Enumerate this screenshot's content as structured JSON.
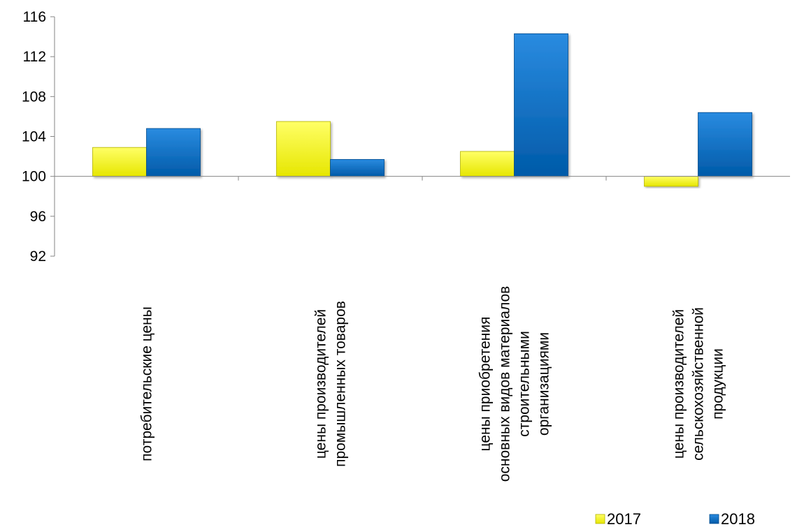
{
  "chart_data": {
    "type": "bar",
    "categories": [
      [
        "потребительские цены"
      ],
      [
        "цены производителей",
        "промышленных товаров"
      ],
      [
        "цены приобретения",
        "основных видов материалов",
        "строительными",
        "организациями"
      ],
      [
        "цены производителей",
        "сельскохозяйственной",
        "продукции"
      ]
    ],
    "series": [
      {
        "name": "2017",
        "values": [
          102.9,
          105.5,
          102.5,
          99.0
        ],
        "color": "#ffff00"
      },
      {
        "name": "2018",
        "values": [
          104.8,
          101.7,
          114.3,
          106.4
        ],
        "color": "#0070c0"
      }
    ],
    "baseline": 100,
    "ylim": [
      92,
      116
    ],
    "yticks": [
      "92",
      "96",
      "100",
      "104",
      "108",
      "112",
      "116"
    ],
    "legend_position": "bottom-right",
    "grid": false
  }
}
